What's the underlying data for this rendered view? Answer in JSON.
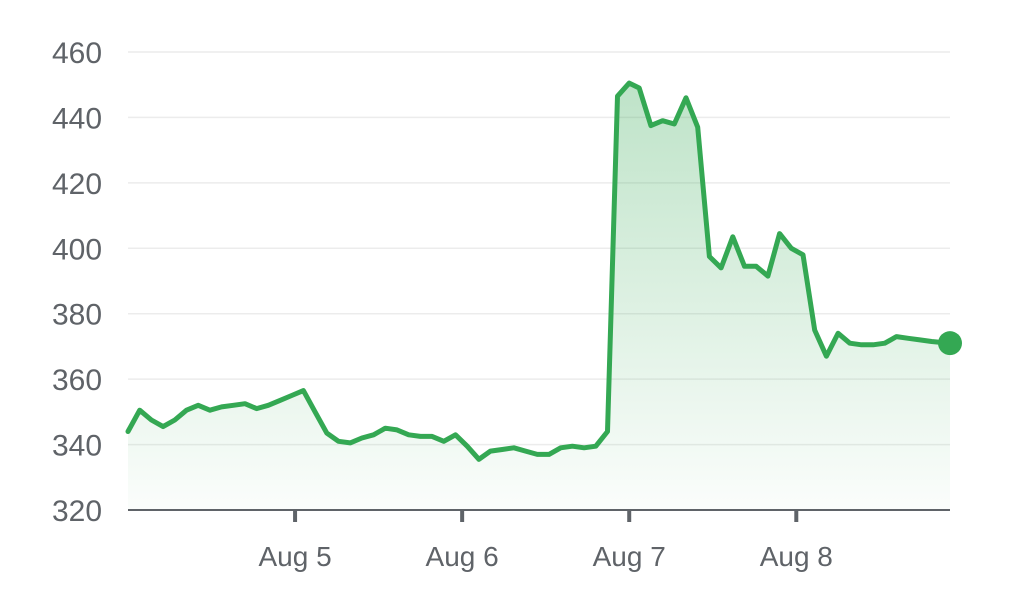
{
  "chart_data": {
    "type": "area",
    "colors": {
      "line": "#34a853",
      "fill": "#34a853"
    },
    "ylim": [
      320,
      460
    ],
    "yticks": [
      320,
      340,
      360,
      380,
      400,
      420,
      440,
      460
    ],
    "ytick_labels": [
      "320",
      "340",
      "360",
      "380",
      "400",
      "420",
      "440",
      "460"
    ],
    "xlim": [
      4.0,
      8.92
    ],
    "xticks": [
      5,
      6,
      7,
      8
    ],
    "xtick_labels": [
      "Aug 5",
      "Aug 6",
      "Aug 7",
      "Aug 8"
    ],
    "grid": true,
    "last_point_marker": true,
    "x": [
      4.0,
      4.07,
      4.14,
      4.21,
      4.28,
      4.35,
      4.42,
      4.49,
      4.56,
      4.63,
      4.7,
      4.77,
      4.84,
      4.91,
      4.98,
      5.05,
      5.12,
      5.19,
      5.26,
      5.33,
      5.4,
      5.47,
      5.54,
      5.61,
      5.68,
      5.75,
      5.82,
      5.89,
      5.96,
      6.03,
      6.1,
      6.17,
      6.24,
      6.31,
      6.38,
      6.45,
      6.52,
      6.59,
      6.66,
      6.73,
      6.8,
      6.87,
      6.93,
      7.0,
      7.06,
      7.13,
      7.2,
      7.27,
      7.34,
      7.41,
      7.48,
      7.55,
      7.62,
      7.69,
      7.76,
      7.83,
      7.9,
      7.97,
      8.04,
      8.11,
      8.18,
      8.25,
      8.32,
      8.39,
      8.46,
      8.53,
      8.6,
      8.67,
      8.74,
      8.81,
      8.92
    ],
    "y": [
      344,
      350.5,
      347.5,
      345.5,
      347.5,
      350.5,
      352,
      350.5,
      351.5,
      352,
      352.5,
      351,
      352,
      353.5,
      355,
      356.5,
      350,
      343.5,
      341,
      340.5,
      342,
      343,
      345,
      344.5,
      343,
      342.5,
      342.5,
      341,
      343,
      339.5,
      335.5,
      338,
      338.5,
      339,
      338,
      337,
      337,
      339,
      339.5,
      339,
      339.5,
      344,
      446.5,
      450.5,
      449,
      437.5,
      439,
      438,
      446,
      437,
      397.5,
      394,
      403.5,
      394.5,
      394.5,
      391.5,
      404.5,
      400,
      398,
      375,
      367,
      374,
      371,
      370.5,
      370.5,
      371,
      373,
      372.5,
      372,
      371.5,
      371
    ]
  }
}
